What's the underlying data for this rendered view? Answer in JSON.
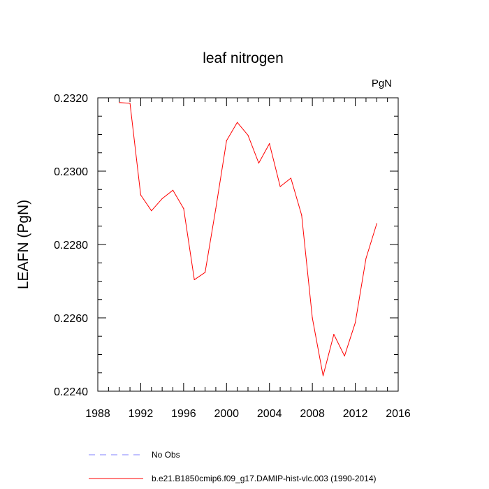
{
  "chart_data": {
    "type": "line",
    "title": "leaf nitrogen",
    "units_label": "PgN",
    "xlabel": "",
    "ylabel": "LEAFN  (PgN)",
    "xlim": [
      1988,
      2016
    ],
    "ylim": [
      0.224,
      0.232
    ],
    "x_ticks": [
      1988,
      1992,
      1996,
      2000,
      2004,
      2008,
      2012,
      2016
    ],
    "x_tick_labels": [
      "1988",
      "1992",
      "1996",
      "2000",
      "2004",
      "2008",
      "2012",
      "2016"
    ],
    "y_ticks": [
      0.224,
      0.226,
      0.228,
      0.23,
      0.232
    ],
    "y_tick_labels": [
      "0.2240",
      "0.2260",
      "0.2280",
      "0.2300",
      "0.2320"
    ],
    "series": [
      {
        "name": "b.e21.B1850cmip6.f09_g17.DAMIP-hist-vlc.003 (1990-2014)",
        "color": "#ff0000",
        "style": "solid",
        "x": [
          1990,
          1991,
          1992,
          1993,
          1994,
          1995,
          1996,
          1997,
          1998,
          1999,
          2000,
          2001,
          2002,
          2003,
          2004,
          2005,
          2006,
          2007,
          2008,
          2009,
          2010,
          2011,
          2012,
          2013,
          2014
        ],
        "values": [
          0.23187,
          0.23185,
          0.22935,
          0.22892,
          0.22925,
          0.22948,
          0.22898,
          0.22704,
          0.22724,
          0.22898,
          0.23083,
          0.23133,
          0.23098,
          0.23022,
          0.23075,
          0.22958,
          0.22981,
          0.2288,
          0.226,
          0.22442,
          0.22555,
          0.22496,
          0.22587,
          0.22762,
          0.22857
        ]
      }
    ],
    "legend": [
      {
        "label": "No Obs",
        "color": "#8080ff",
        "style": "dashed"
      },
      {
        "label": "b.e21.B1850cmip6.f09_g17.DAMIP-hist-vlc.003 (1990-2014)",
        "color": "#ff0000",
        "style": "solid"
      }
    ]
  }
}
